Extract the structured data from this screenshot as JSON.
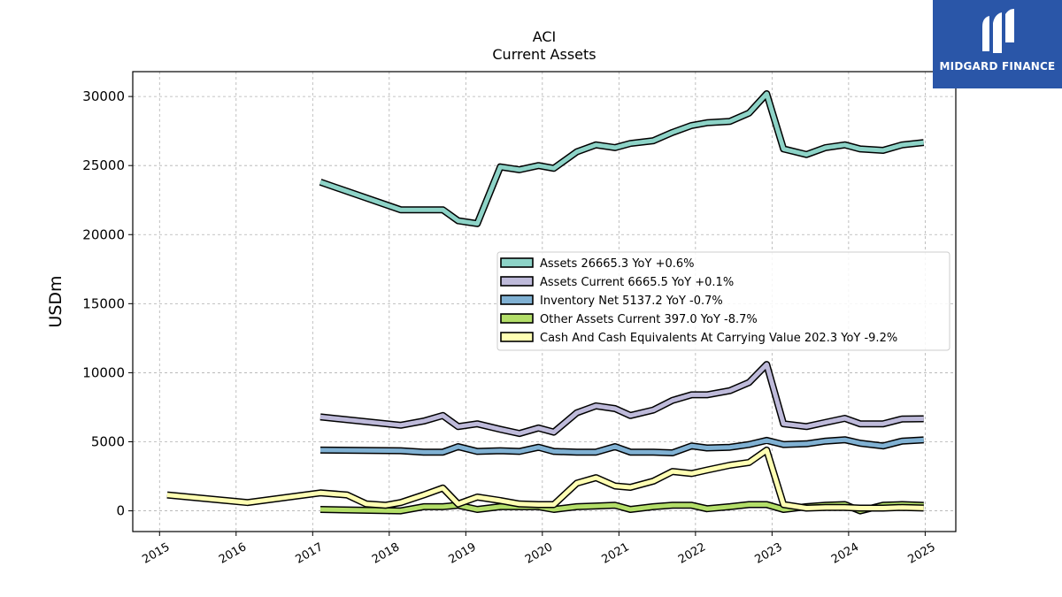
{
  "branding": {
    "name": "MIDGARD FINANCE",
    "logo_icon": "midgard-logo-icon",
    "bg_color": "#2a56a8"
  },
  "chart_data": {
    "type": "line",
    "title": "ACI",
    "subtitle": "Current  Assets",
    "ylabel": "USDm",
    "xlabel": "",
    "xlim": [
      2014.65,
      2025.4
    ],
    "ylim": [
      -1500,
      31800
    ],
    "x_ticks": [
      2015,
      2016,
      2017,
      2018,
      2019,
      2020,
      2021,
      2022,
      2023,
      2024,
      2025
    ],
    "y_ticks": [
      0,
      5000,
      10000,
      15000,
      20000,
      25000,
      30000
    ],
    "grid": true,
    "legend_position": "center-right",
    "series": [
      {
        "name": "Assets  26665.3 YoY +0.6%",
        "color": "#8dd3c7",
        "x": [
          2017.1,
          2018.15,
          2018.7,
          2018.9,
          2019.15,
          2019.45,
          2019.7,
          2019.95,
          2020.15,
          2020.45,
          2020.7,
          2020.95,
          2021.15,
          2021.45,
          2021.7,
          2021.95,
          2022.15,
          2022.45,
          2022.7,
          2022.93,
          2023.15,
          2023.45,
          2023.7,
          2023.95,
          2024.15,
          2024.45,
          2024.7,
          2024.98
        ],
        "y": [
          23800,
          21800,
          21800,
          21000,
          20800,
          24900,
          24700,
          25000,
          24800,
          26000,
          26500,
          26300,
          26600,
          26800,
          27400,
          27900,
          28100,
          28200,
          28800,
          30200,
          26200,
          25800,
          26300,
          26500,
          26200,
          26100,
          26500,
          26665.3
        ]
      },
      {
        "name": "Assets Current  6665.5 YoY +0.1%",
        "color": "#bebada",
        "x": [
          2017.1,
          2018.15,
          2018.45,
          2018.7,
          2018.9,
          2019.15,
          2019.45,
          2019.7,
          2019.95,
          2020.15,
          2020.45,
          2020.7,
          2020.95,
          2021.15,
          2021.45,
          2021.7,
          2021.95,
          2022.15,
          2022.45,
          2022.7,
          2022.93,
          2023.15,
          2023.45,
          2023.7,
          2023.95,
          2024.15,
          2024.45,
          2024.7,
          2024.98
        ],
        "y": [
          6800,
          6200,
          6500,
          6900,
          6100,
          6300,
          5900,
          5600,
          6000,
          5700,
          7100,
          7600,
          7400,
          6900,
          7300,
          8000,
          8400,
          8400,
          8700,
          9300,
          10600,
          6300,
          6100,
          6400,
          6700,
          6300,
          6300,
          6650,
          6665.5
        ]
      },
      {
        "name": "Inventory Net  5137.2 YoY -0.7%",
        "color": "#80b1d3",
        "x": [
          2017.1,
          2018.15,
          2018.45,
          2018.7,
          2018.9,
          2019.15,
          2019.45,
          2019.7,
          2019.95,
          2020.15,
          2020.45,
          2020.7,
          2020.95,
          2021.15,
          2021.45,
          2021.7,
          2021.95,
          2022.15,
          2022.45,
          2022.7,
          2022.93,
          2023.15,
          2023.45,
          2023.7,
          2023.95,
          2024.15,
          2024.45,
          2024.7,
          2024.98
        ],
        "y": [
          4400,
          4350,
          4250,
          4250,
          4650,
          4300,
          4350,
          4300,
          4600,
          4300,
          4250,
          4250,
          4650,
          4250,
          4250,
          4200,
          4700,
          4550,
          4600,
          4800,
          5100,
          4800,
          4850,
          5050,
          5150,
          4900,
          4700,
          5050,
          5137.2
        ]
      },
      {
        "name": "Other Assets Current  397.0 YoY -8.7%",
        "color": "#b3de69",
        "x": [
          2017.1,
          2018.15,
          2018.45,
          2018.7,
          2018.9,
          2019.15,
          2019.45,
          2019.7,
          2019.95,
          2020.15,
          2020.45,
          2020.7,
          2020.95,
          2021.15,
          2021.45,
          2021.7,
          2021.95,
          2022.15,
          2022.45,
          2022.7,
          2022.93,
          2023.15,
          2023.45,
          2023.7,
          2023.95,
          2024.15,
          2024.45,
          2024.7,
          2024.98
        ],
        "y": [
          100,
          0,
          300,
          300,
          400,
          100,
          300,
          300,
          300,
          100,
          300,
          350,
          400,
          100,
          300,
          400,
          400,
          150,
          300,
          450,
          450,
          100,
          300,
          400,
          450,
          0,
          400,
          450,
          397.0
        ]
      },
      {
        "name": "Cash And Cash Equivalents At Carrying Value  202.3 YoY -9.2%",
        "color": "#ffffb3",
        "x": [
          2015.1,
          2016.15,
          2017.1,
          2017.45,
          2017.7,
          2017.95,
          2018.15,
          2018.45,
          2018.7,
          2018.9,
          2019.15,
          2019.45,
          2019.7,
          2019.95,
          2020.15,
          2020.45,
          2020.7,
          2020.95,
          2021.15,
          2021.45,
          2021.7,
          2021.95,
          2022.15,
          2022.45,
          2022.7,
          2022.93,
          2023.15,
          2023.45,
          2023.7,
          2023.95,
          2024.15,
          2024.45,
          2024.7,
          2024.98
        ],
        "y": [
          1150,
          600,
          1300,
          1150,
          500,
          400,
          600,
          1150,
          1650,
          500,
          1000,
          750,
          500,
          450,
          450,
          2000,
          2400,
          1800,
          1700,
          2150,
          2850,
          2700,
          2950,
          3300,
          3500,
          4400,
          450,
          200,
          250,
          250,
          200,
          200,
          250,
          202.3
        ]
      }
    ]
  }
}
